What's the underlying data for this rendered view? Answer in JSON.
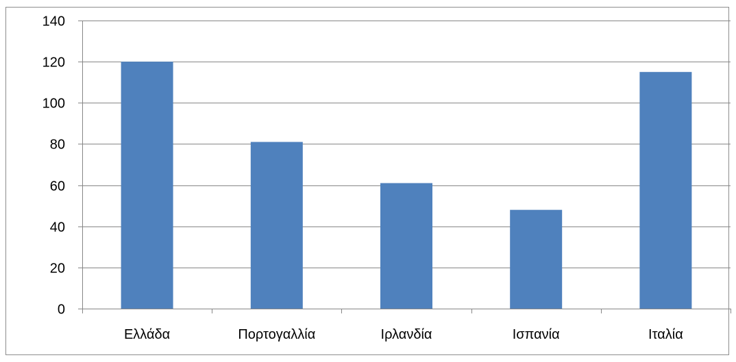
{
  "chart_data": {
    "type": "bar",
    "categories": [
      "Ελλάδα",
      "Πορτογαλλία",
      "Ιρλανδία",
      "Ισπανία",
      "Ιταλία"
    ],
    "values": [
      120,
      81,
      61,
      48,
      115
    ],
    "title": "",
    "xlabel": "",
    "ylabel": "",
    "ylim": [
      0,
      140
    ],
    "yticks": [
      "0",
      "20",
      "40",
      "60",
      "80",
      "100",
      "120",
      "140"
    ],
    "grid": true,
    "legend": "none",
    "bar_color": "#4f81bd",
    "grid_color": "#868686",
    "axis_color": "#868686"
  }
}
